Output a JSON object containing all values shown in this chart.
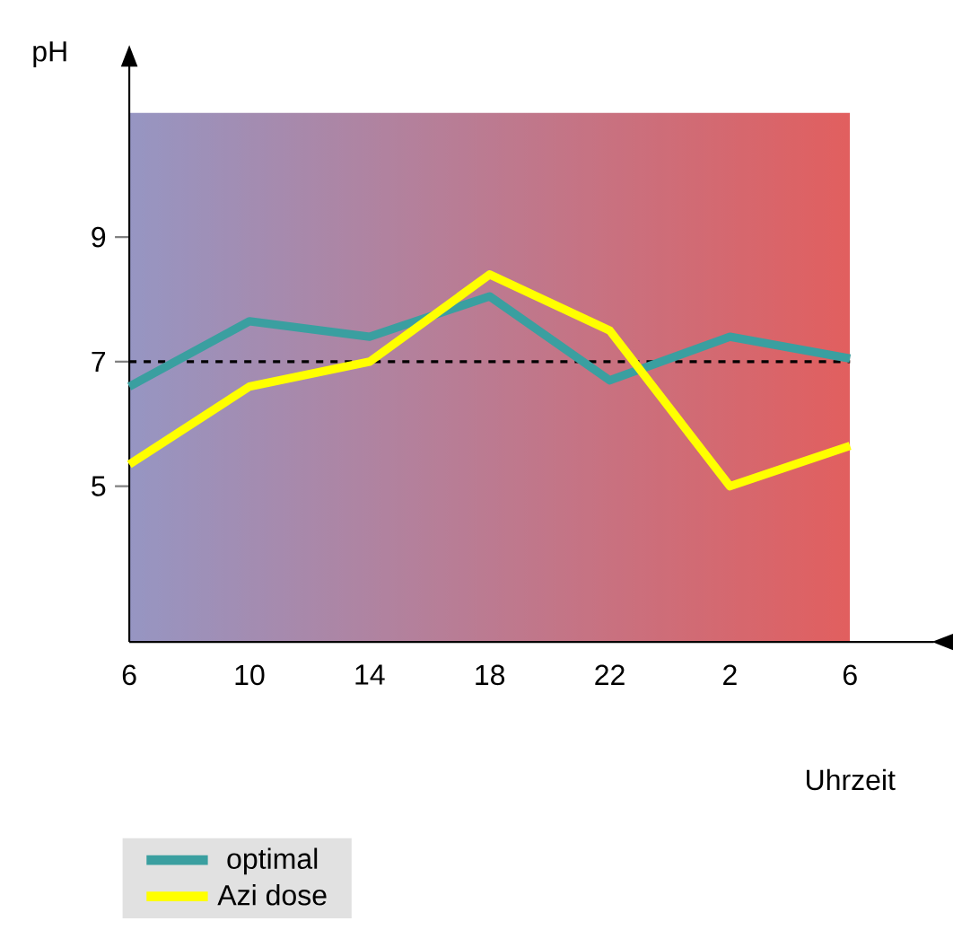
{
  "chart_data": {
    "type": "line",
    "xlabel": "Uhrzeit",
    "ylabel": "pH",
    "categories": [
      "6",
      "10",
      "14",
      "18",
      "22",
      "2",
      "6"
    ],
    "series": [
      {
        "name": "optimal",
        "color": "#3a9fa0",
        "values": [
          6.6,
          7.65,
          7.4,
          8.05,
          6.7,
          7.4,
          7.05
        ]
      },
      {
        "name": "Azi dose",
        "color": "#ffff00",
        "values": [
          5.35,
          6.6,
          7.0,
          8.4,
          7.5,
          5.0,
          5.65
        ]
      }
    ],
    "ylim": [
      2.5,
      11
    ],
    "yticks": [
      5,
      7,
      9
    ],
    "ref_lines": [
      {
        "axis": "y",
        "value": 7,
        "color": "#000000",
        "line_style": "dashed"
      }
    ],
    "legend": "bottom left",
    "marker": "none",
    "line_style": "solid"
  }
}
